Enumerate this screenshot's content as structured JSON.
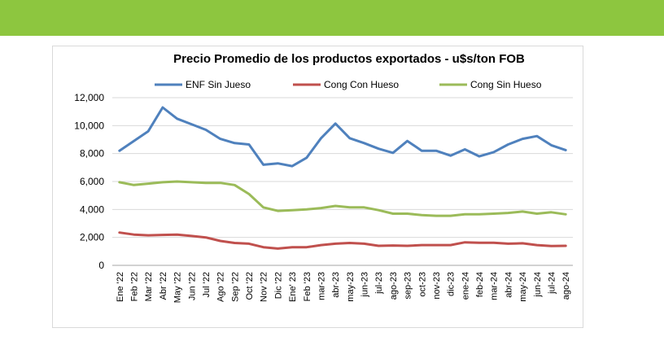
{
  "page": {
    "banner_color": "#8dc63f"
  },
  "chart_data": {
    "type": "line",
    "title": "Precio Promedio de los productos exportados - u$s/ton FOB",
    "xlabel": "",
    "ylabel": "",
    "ylim": [
      0,
      12000
    ],
    "yticks": [
      "0",
      "2,000",
      "4,000",
      "6,000",
      "8,000",
      "10,000",
      "12,000"
    ],
    "grid": true,
    "legend": "top",
    "categories": [
      "Ene '22",
      "Feb '22",
      "Mar '22",
      "Abr '22",
      "May '22",
      "Jun '22",
      "Jul '22",
      "Ago '22",
      "Sep '22",
      "Oct '22",
      "Nov '22",
      "Dic '22",
      "Ene' 23",
      "Feb '23",
      "mar-23",
      "abr-23",
      "may-23",
      "jun-23",
      "jul-23",
      "ago-23",
      "sep-23",
      "oct-23",
      "nov-23",
      "dic-23",
      "ene-24",
      "feb-24",
      "mar-24",
      "abr-24",
      "may-24",
      "jun-24",
      "jul-24",
      "ago-24"
    ],
    "series": [
      {
        "name": "ENF Sin Jueso",
        "color": "#4f81bd",
        "values": [
          8200,
          8900,
          9600,
          11300,
          10500,
          10100,
          9700,
          9050,
          8750,
          8650,
          7200,
          7300,
          7100,
          7700,
          9100,
          10150,
          9100,
          8750,
          8350,
          8050,
          8900,
          8200,
          8200,
          7850,
          8300,
          7800,
          8100,
          8650,
          9050,
          9250,
          8600,
          8250
        ]
      },
      {
        "name": "Cong Con Hueso",
        "color": "#c0504d",
        "values": [
          2350,
          2200,
          2150,
          2180,
          2200,
          2100,
          2000,
          1750,
          1600,
          1550,
          1300,
          1200,
          1300,
          1300,
          1450,
          1550,
          1600,
          1550,
          1400,
          1420,
          1400,
          1450,
          1450,
          1450,
          1650,
          1620,
          1620,
          1550,
          1580,
          1450,
          1380,
          1400
        ]
      },
      {
        "name": "Cong Sin Hueso",
        "color": "#9bbb59",
        "values": [
          5950,
          5750,
          5850,
          5950,
          6000,
          5950,
          5900,
          5900,
          5750,
          5100,
          4150,
          3900,
          3950,
          4000,
          4100,
          4250,
          4150,
          4150,
          3950,
          3700,
          3700,
          3600,
          3550,
          3550,
          3650,
          3650,
          3700,
          3750,
          3850,
          3700,
          3800,
          3650
        ]
      }
    ]
  }
}
